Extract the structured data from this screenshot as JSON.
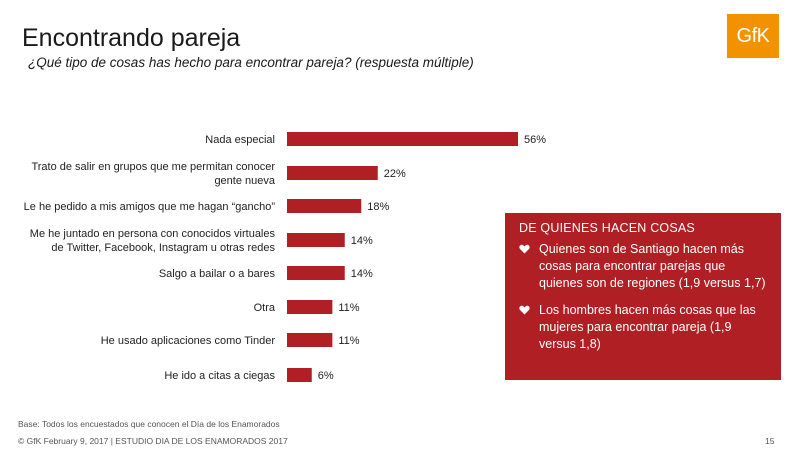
{
  "header": {
    "title": "Encontrando pareja",
    "subtitle": "¿Qué tipo de cosas has hecho para encontrar pareja? (respuesta múltiple)",
    "logo_text": "GfK"
  },
  "colors": {
    "bar": "#b01f24",
    "callout_bg": "#b01f24",
    "logo_bg": "#f39200"
  },
  "chart_data": {
    "type": "bar",
    "orientation": "horizontal",
    "categories": [
      [
        "Nada especial"
      ],
      [
        "Trato de salir en grupos que me permitan conocer",
        "gente nueva"
      ],
      [
        "Le he pedido a mis amigos que me hagan “gancho”"
      ],
      [
        "Me he juntado en persona con conocidos virtuales",
        "de Twitter, Facebook, Instagram u otras redes"
      ],
      [
        "Salgo a bailar o a bares"
      ],
      [
        "Otra"
      ],
      [
        "He usado aplicaciones como Tinder"
      ],
      [
        "He ido a citas a ciegas"
      ]
    ],
    "values": [
      56,
      22,
      18,
      14,
      14,
      11,
      11,
      6
    ],
    "value_labels": [
      "56%",
      "22%",
      "18%",
      "14%",
      "14%",
      "11%",
      "11%",
      "6%"
    ],
    "unit": "%"
  },
  "callout": {
    "title": "DE QUIENES HACEN COSAS",
    "items": [
      "Quienes son de Santiago hacen más cosas para encontrar parejas que quienes son de regiones (1,9 versus 1,7)",
      "Los hombres hacen más cosas que las mujeres para encontrar pareja (1,9 versus 1,8)"
    ],
    "icon": "heart-icon"
  },
  "footer": {
    "base_note": "Base: Todos los encuestados que conocen el Día de los Enamorados",
    "copyright": "© GfK February 9, 2017 | ESTUDIO DIA DE LOS ENAMORADOS 2017",
    "page_number": "15"
  }
}
